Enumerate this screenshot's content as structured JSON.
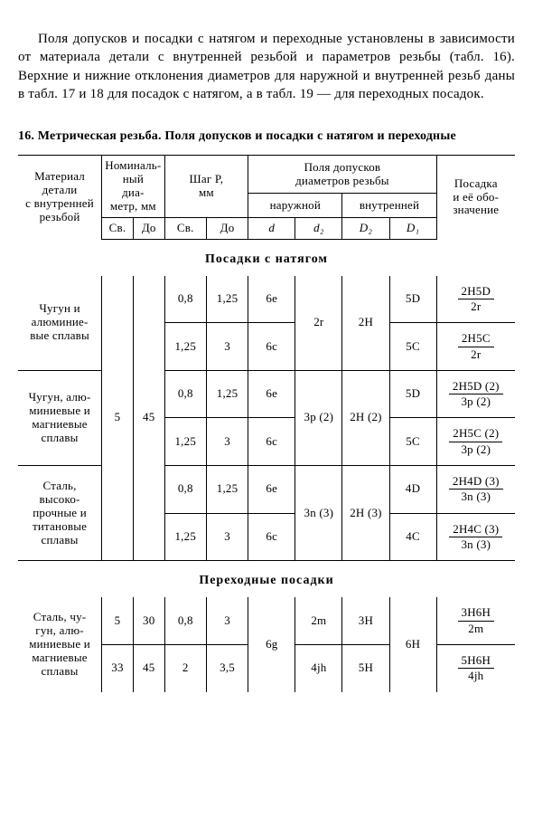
{
  "paragraph": "Поля допусков и посадки с натягом и переходные установлены в зависимости от материала детали с внутренней резьбой и параметров резьбы (табл. 16). Верхние и нижние отклонения диаметров для наружной и внутренней резьб даны в табл. 17 и 18 для посадок с натягом, а в табл. 19 — для переходных посадок.",
  "table_title": "16. Метрическая резьба. Поля допусков и посадки с натягом и переходные",
  "hdr": {
    "material": "Материал\nдетали\nс внутренней\nрезьбой",
    "nominal": "Номиналь-\nный\nдиа-\nметр, мм",
    "pitch": "Шаг P,\nмм",
    "tol": "Поля допусков\nдиаметров резьбы",
    "tol_outer": "наружной",
    "tol_inner": "внутренней",
    "fit": "Посадка\nи её обо-\nзначение",
    "sv": "Св.",
    "do": "До",
    "d": "d",
    "d2": "d₂",
    "D2": "D₂",
    "D1": "D₁"
  },
  "section1": "Посадки с натягом",
  "g1": {
    "material1": "Чугун и\nалюминие-\nвые сплавы",
    "sv": "5",
    "do": "45",
    "r1": {
      "pv1": "0,8",
      "pv2": "1,25",
      "d": "6e",
      "D1": "5D",
      "fnum": "2H5D",
      "fden": "2r"
    },
    "d2": "2r",
    "D2": "2H",
    "r2": {
      "pv1": "1,25",
      "pv2": "3",
      "d": "6c",
      "D1": "5C",
      "fnum": "2H5C",
      "fden": "2r"
    }
  },
  "g2": {
    "material": "Чугун, алю-\nминиевые и\nмагниевые\nсплавы",
    "r1": {
      "pv1": "0,8",
      "pv2": "1,25",
      "d": "6e",
      "D1": "5D",
      "fnum": "2H5D (2)",
      "fden": "3p (2)"
    },
    "d2": "3p (2)",
    "D2": "2H (2)",
    "r2": {
      "pv1": "1,25",
      "pv2": "3",
      "d": "6c",
      "D1": "5C",
      "fnum": "2H5C (2)",
      "fden": "3p (2)"
    }
  },
  "g3": {
    "material": "Сталь,\nвысоко-\nпрочные и\nтитановые\nсплавы",
    "r1": {
      "pv1": "0,8",
      "pv2": "1,25",
      "d": "6e",
      "D1": "4D",
      "fnum": "2H4D (3)",
      "fden": "3n (3)"
    },
    "d2": "3n (3)",
    "D2": "2H (3)",
    "r2": {
      "pv1": "1,25",
      "pv2": "3",
      "d": "6c",
      "D1": "4C",
      "fnum": "2H4C (3)",
      "fden": "3n (3)"
    }
  },
  "section2": "Переходные посадки",
  "g4": {
    "material": "Сталь, чу-\nгун, алю-\nминиевые и\nмагниевые\nсплавы",
    "d": "6g",
    "D1": "6H",
    "r1": {
      "sv": "5",
      "do": "30",
      "pv1": "0,8",
      "pv2": "3",
      "d2": "2m",
      "D2": "3H",
      "fnum": "3H6H",
      "fden": "2m"
    },
    "r2": {
      "sv": "33",
      "do": "45",
      "pv1": "2",
      "pv2": "3,5",
      "d2": "4jh",
      "D2": "5H",
      "fnum": "5H6H",
      "fden": "4jh"
    }
  }
}
